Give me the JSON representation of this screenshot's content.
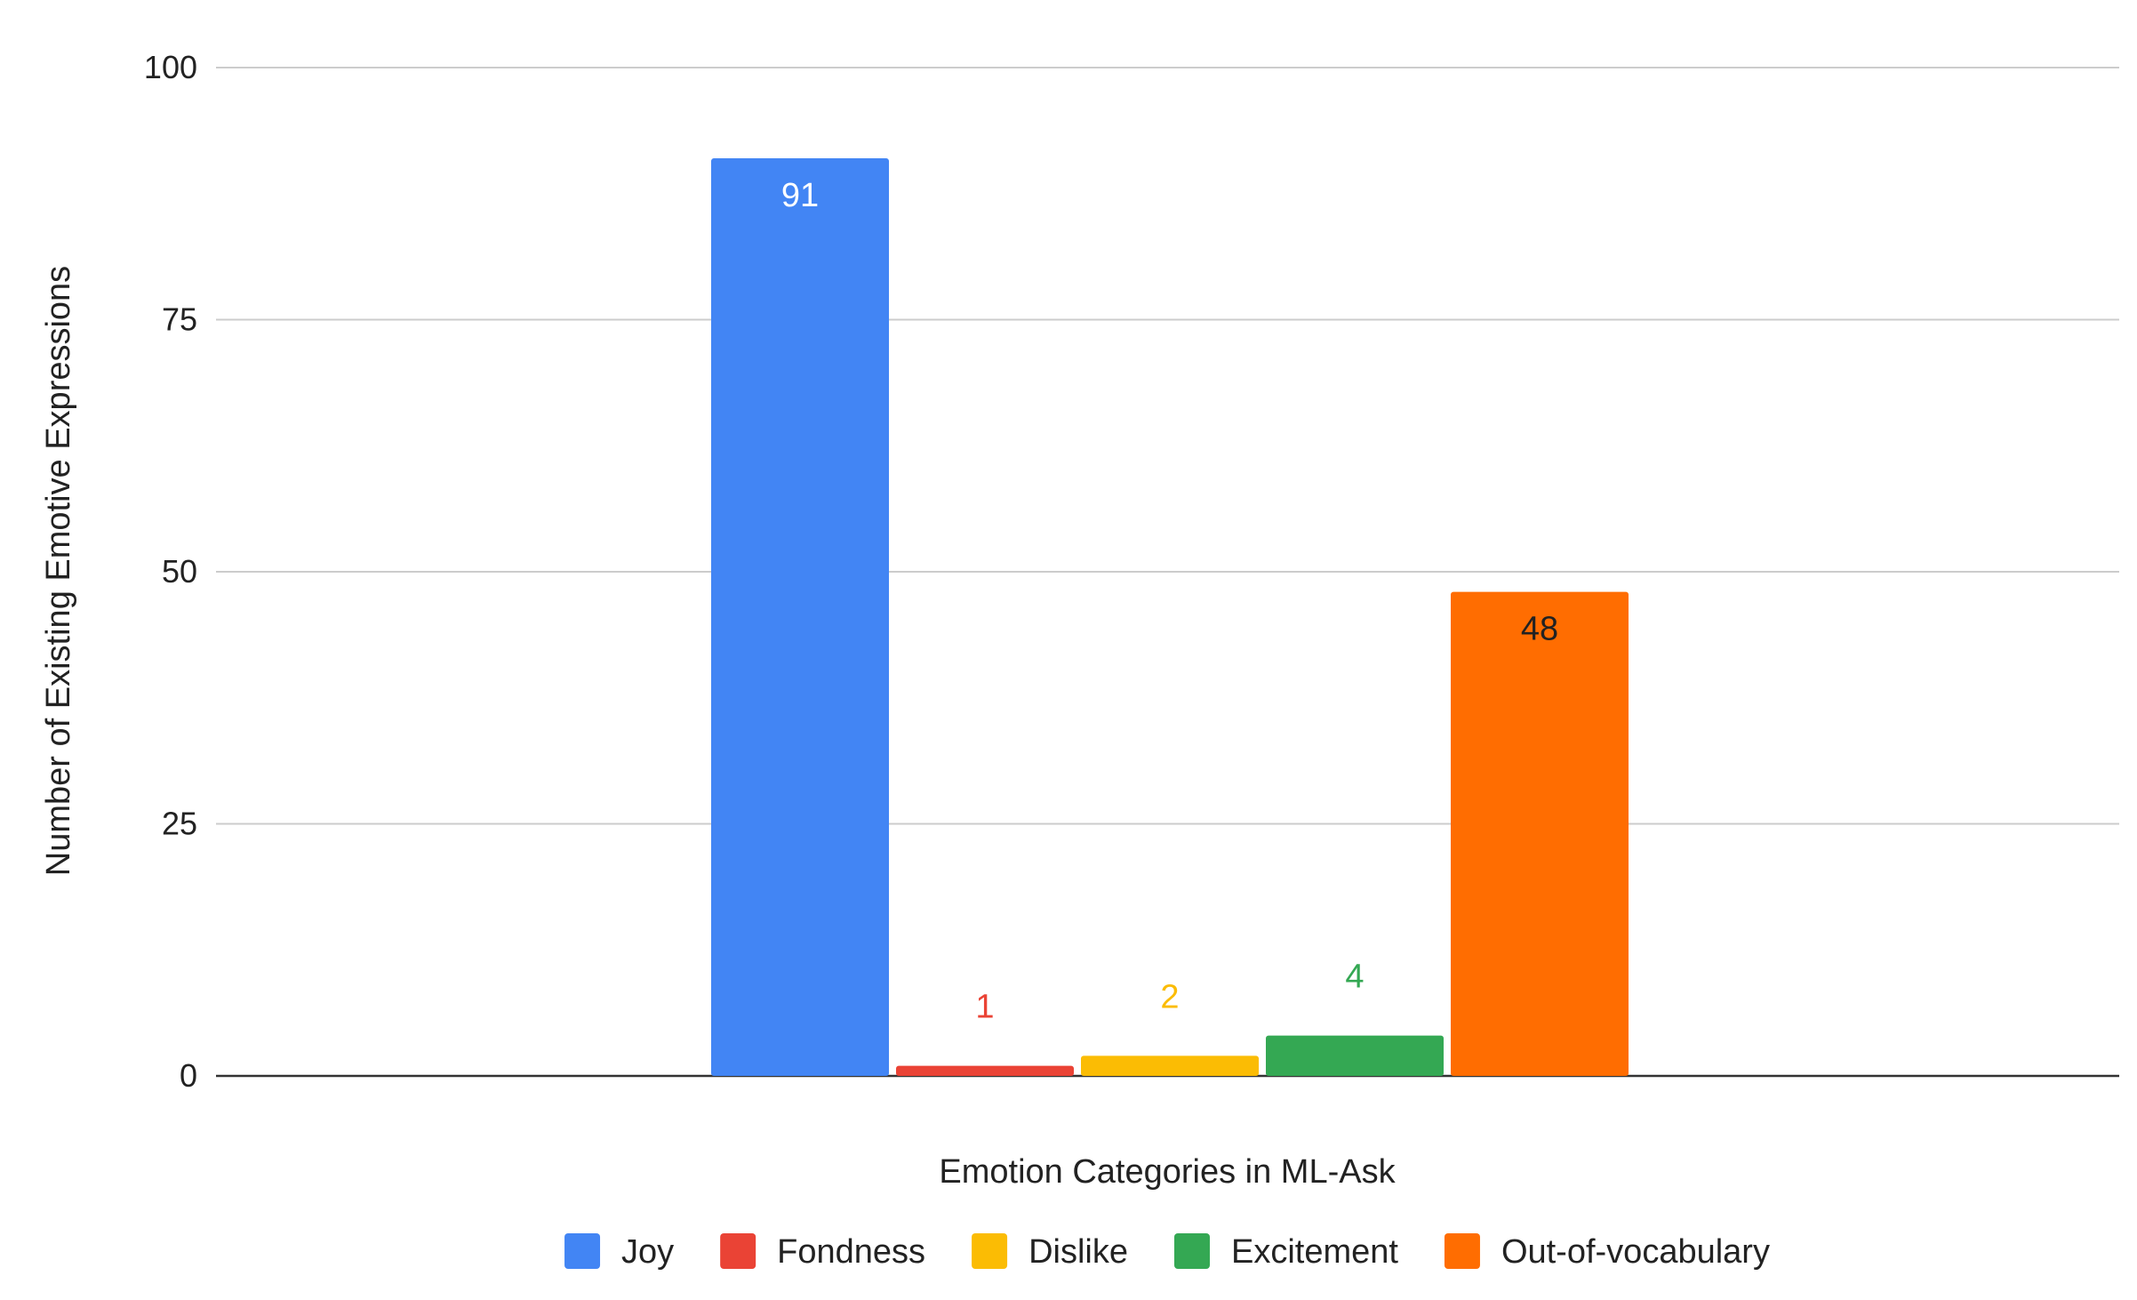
{
  "chart_data": {
    "type": "bar",
    "xlabel": "Emotion Categories in ML-Ask",
    "ylabel": "Number of Existing Emotive Expressions",
    "ylim": [
      0,
      100
    ],
    "yticks": [
      0,
      25,
      50,
      75,
      100
    ],
    "grid": true,
    "legend_position": "bottom",
    "series": [
      {
        "name": "Joy",
        "value": 91,
        "color": "#4285F4",
        "label_color": "#ffffff"
      },
      {
        "name": "Fondness",
        "value": 1,
        "color": "#EA4335",
        "label_color": "#EA4335"
      },
      {
        "name": "Dislike",
        "value": 2,
        "color": "#FBBC04",
        "label_color": "#FBBC04"
      },
      {
        "name": "Excitement",
        "value": 4,
        "color": "#34A853",
        "label_color": "#34A853"
      },
      {
        "name": "Out-of-vocabulary",
        "value": 48,
        "color": "#FF6D01",
        "label_color": "#222222"
      }
    ]
  }
}
